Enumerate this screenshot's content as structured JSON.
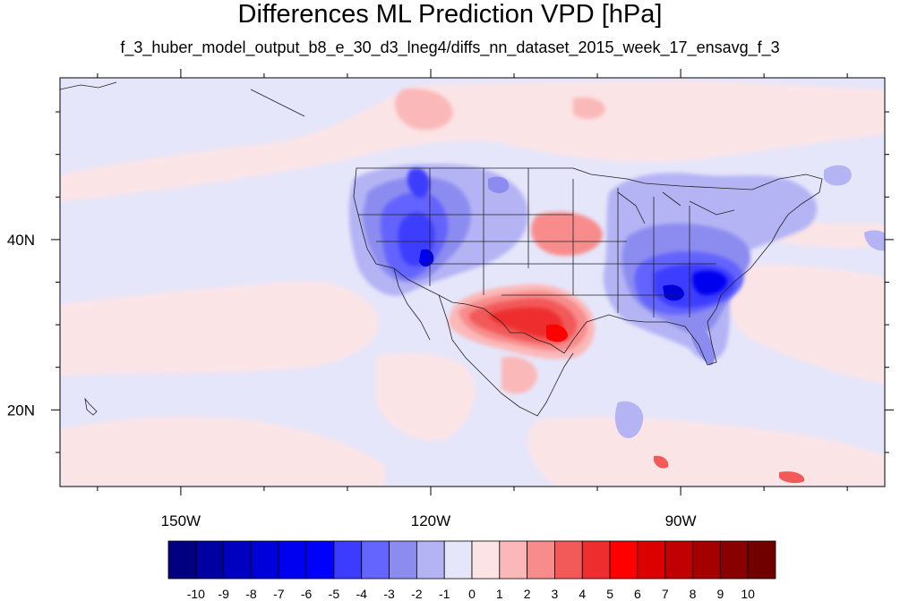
{
  "title": "Differences ML Prediction VPD [hPa]",
  "subtitle": "f_3_huber_model_output_b8_e_30_d3_lneg4/diffs_nn_dataset_2015_week_17_ensavg_f_3",
  "map": {
    "projection": "lat-lon",
    "lon_range": [
      -164.5,
      -65.5
    ],
    "lat_range": [
      11,
      59
    ],
    "lon_ticks": [
      {
        "value": -150,
        "label": "150W"
      },
      {
        "value": -120,
        "label": "120W"
      },
      {
        "value": -90,
        "label": "90W"
      }
    ],
    "lat_ticks": [
      {
        "value": 40,
        "label": "40N"
      },
      {
        "value": 20,
        "label": "20N"
      }
    ],
    "background_color": "#e6e6fa"
  },
  "colorbar": {
    "labels": [
      "-10",
      "-9",
      "-8",
      "-7",
      "-6",
      "-5",
      "-4",
      "-3",
      "-2",
      "-1",
      "0",
      "1",
      "2",
      "3",
      "4",
      "5",
      "6",
      "7",
      "8",
      "9",
      "10"
    ],
    "colors": [
      "#000080",
      "#0000a0",
      "#0000c0",
      "#0000d8",
      "#0000f0",
      "#0000ff",
      "#3c3cff",
      "#6464ff",
      "#8c8cf0",
      "#b4b4f5",
      "#e6e6fa",
      "#fde4e4",
      "#fbb8b8",
      "#f88c8c",
      "#f25a5a",
      "#ee2e2e",
      "#ff0000",
      "#dc0000",
      "#c00000",
      "#a40000",
      "#880000",
      "#700000"
    ]
  }
}
